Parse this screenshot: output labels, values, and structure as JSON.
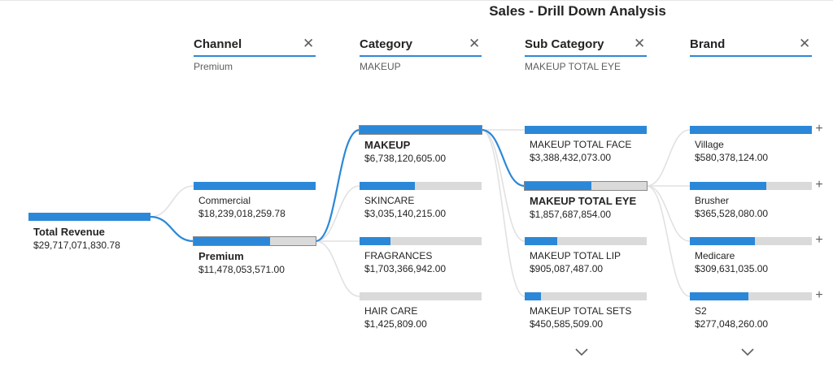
{
  "title": "Sales - Drill Down Analysis",
  "colors": {
    "accent": "#2b88d8",
    "track": "#dadada",
    "link_active": "#2b88d8",
    "link_inactive": "#e1e1e1"
  },
  "icons": {
    "close": "close-icon",
    "expand": "plus-icon",
    "more": "chevron-down-icon"
  },
  "levels": [
    {
      "name": "Channel",
      "selected": "Premium"
    },
    {
      "name": "Category",
      "selected": "MAKEUP"
    },
    {
      "name": "Sub Category",
      "selected": "MAKEUP TOTAL EYE"
    },
    {
      "name": "Brand",
      "selected": ""
    }
  ],
  "chart_data": {
    "type": "decomposition-tree",
    "title": "Sales - Drill Down Analysis",
    "root": {
      "label": "Total Revenue",
      "value_text": "$29,717,071,830.78",
      "value": 29717071830.78
    },
    "columns": [
      {
        "level": "Channel",
        "nodes": [
          {
            "label": "Commercial",
            "value_text": "$18,239,018,259.78",
            "value": 18239018259.78
          },
          {
            "label": "Premium",
            "value_text": "$11,478,053,571.00",
            "value": 11478053571.0,
            "selected": true
          }
        ]
      },
      {
        "level": "Category",
        "nodes": [
          {
            "label": "MAKEUP",
            "value_text": "$6,738,120,605.00",
            "value": 6738120605.0,
            "selected": true
          },
          {
            "label": "SKINCARE",
            "value_text": "$3,035,140,215.00",
            "value": 3035140215.0
          },
          {
            "label": "FRAGRANCES",
            "value_text": "$1,703,366,942.00",
            "value": 1703366942.0
          },
          {
            "label": "HAIR CARE",
            "value_text": "$1,425,809.00",
            "value": 1425809.0
          }
        ]
      },
      {
        "level": "Sub Category",
        "nodes": [
          {
            "label": "MAKEUP TOTAL FACE",
            "value_text": "$3,388,432,073.00",
            "value": 3388432073.0
          },
          {
            "label": "MAKEUP TOTAL EYE",
            "value_text": "$1,857,687,854.00",
            "value": 1857687854.0,
            "selected": true
          },
          {
            "label": "MAKEUP TOTAL LIP",
            "value_text": "$905,087,487.00",
            "value": 905087487.0
          },
          {
            "label": "MAKEUP TOTAL SETS",
            "value_text": "$450,585,509.00",
            "value": 450585509.0
          }
        ]
      },
      {
        "level": "Brand",
        "nodes": [
          {
            "label": "Village",
            "value_text": "$580,378,124.00",
            "value": 580378124.0
          },
          {
            "label": "Brusher",
            "value_text": "$365,528,080.00",
            "value": 365528080.0
          },
          {
            "label": "Medicare",
            "value_text": "$309,631,035.00",
            "value": 309631035.0
          },
          {
            "label": "S2",
            "value_text": "$277,048,260.00",
            "value": 277048260.0
          }
        ]
      }
    ]
  }
}
